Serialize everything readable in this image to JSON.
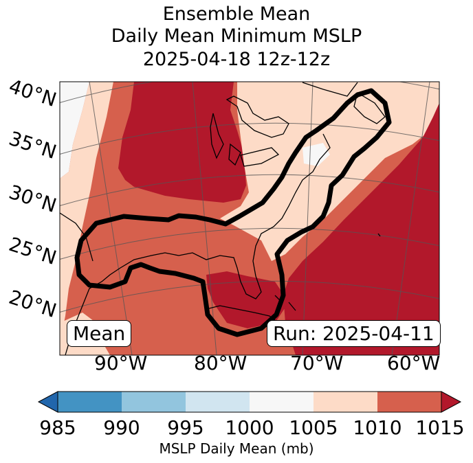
{
  "title": {
    "line1": "Ensemble Mean",
    "line2": "Daily Mean Minimum MSLP",
    "line3": "2025-04-18 12z-12z"
  },
  "map": {
    "lat_labels": [
      "40°N",
      "35°N",
      "30°N",
      "25°N",
      "20°N"
    ],
    "lon_labels": [
      "90°W",
      "80°W",
      "70°W",
      "60°W"
    ],
    "mean_label": "Mean",
    "run_label": "Run: 2025-04-11"
  },
  "colorbar": {
    "label": "MSLP Daily Mean (mb)",
    "ticks": [
      "985",
      "990",
      "995",
      "1000",
      "1005",
      "1010",
      "1015"
    ],
    "colors": [
      "#2166ac",
      "#4393c3",
      "#92c5de",
      "#d1e5f0",
      "#f7f7f7",
      "#fddbc7",
      "#d6604d",
      "#b2182b"
    ]
  },
  "chart_data": {
    "type": "heatmap",
    "title": "Ensemble Mean Daily Mean Minimum MSLP 2025-04-18 12z-12z",
    "variable": "MSLP Daily Mean (mb)",
    "levels": [
      985,
      990,
      995,
      1000,
      1005,
      1010,
      1015
    ],
    "extend": "both",
    "lat_ticks": [
      40,
      35,
      30,
      25,
      20
    ],
    "lon_ticks": [
      -90,
      -80,
      -70,
      -60
    ]
  }
}
